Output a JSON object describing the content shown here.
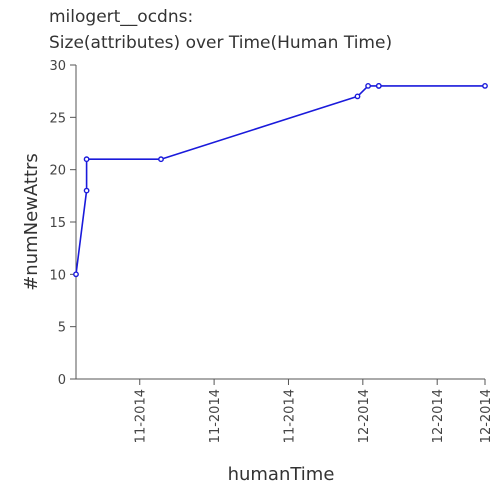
{
  "title_line1": "milogert__ocdns:",
  "title_line2": "Size(attributes) over Time(Human Time)",
  "chart_data": {
    "type": "line",
    "title": "milogert__ocdns:\nSize(attributes) over Time(Human Time)",
    "xlabel": "humanTime",
    "ylabel": "#numNewAttrs",
    "ylim": [
      0,
      30
    ],
    "yticks": [
      0,
      5,
      10,
      15,
      20,
      25,
      30
    ],
    "xlim": [
      "2014-10-08",
      "2014-12-24"
    ],
    "xticks": [
      {
        "date": "2014-10-20",
        "label": "11-2014"
      },
      {
        "date": "2014-11-03",
        "label": "11-2014"
      },
      {
        "date": "2014-11-17",
        "label": "11-2014"
      },
      {
        "date": "2014-12-01",
        "label": "12-2014"
      },
      {
        "date": "2014-12-15",
        "label": "12-2014"
      },
      {
        "date": "2014-12-24",
        "label": "12-2014"
      }
    ],
    "grid": false,
    "color": "#1a1adb",
    "series": [
      {
        "points": [
          {
            "x": "2014-10-08",
            "y": 10
          },
          {
            "x": "2014-10-10",
            "y": 18
          },
          {
            "x": "2014-10-10",
            "y": 21
          },
          {
            "x": "2014-10-24",
            "y": 21
          },
          {
            "x": "2014-11-30",
            "y": 27
          },
          {
            "x": "2014-12-02",
            "y": 28
          },
          {
            "x": "2014-12-04",
            "y": 28
          },
          {
            "x": "2014-12-04",
            "y": 28
          },
          {
            "x": "2014-12-24",
            "y": 28
          }
        ]
      }
    ]
  }
}
